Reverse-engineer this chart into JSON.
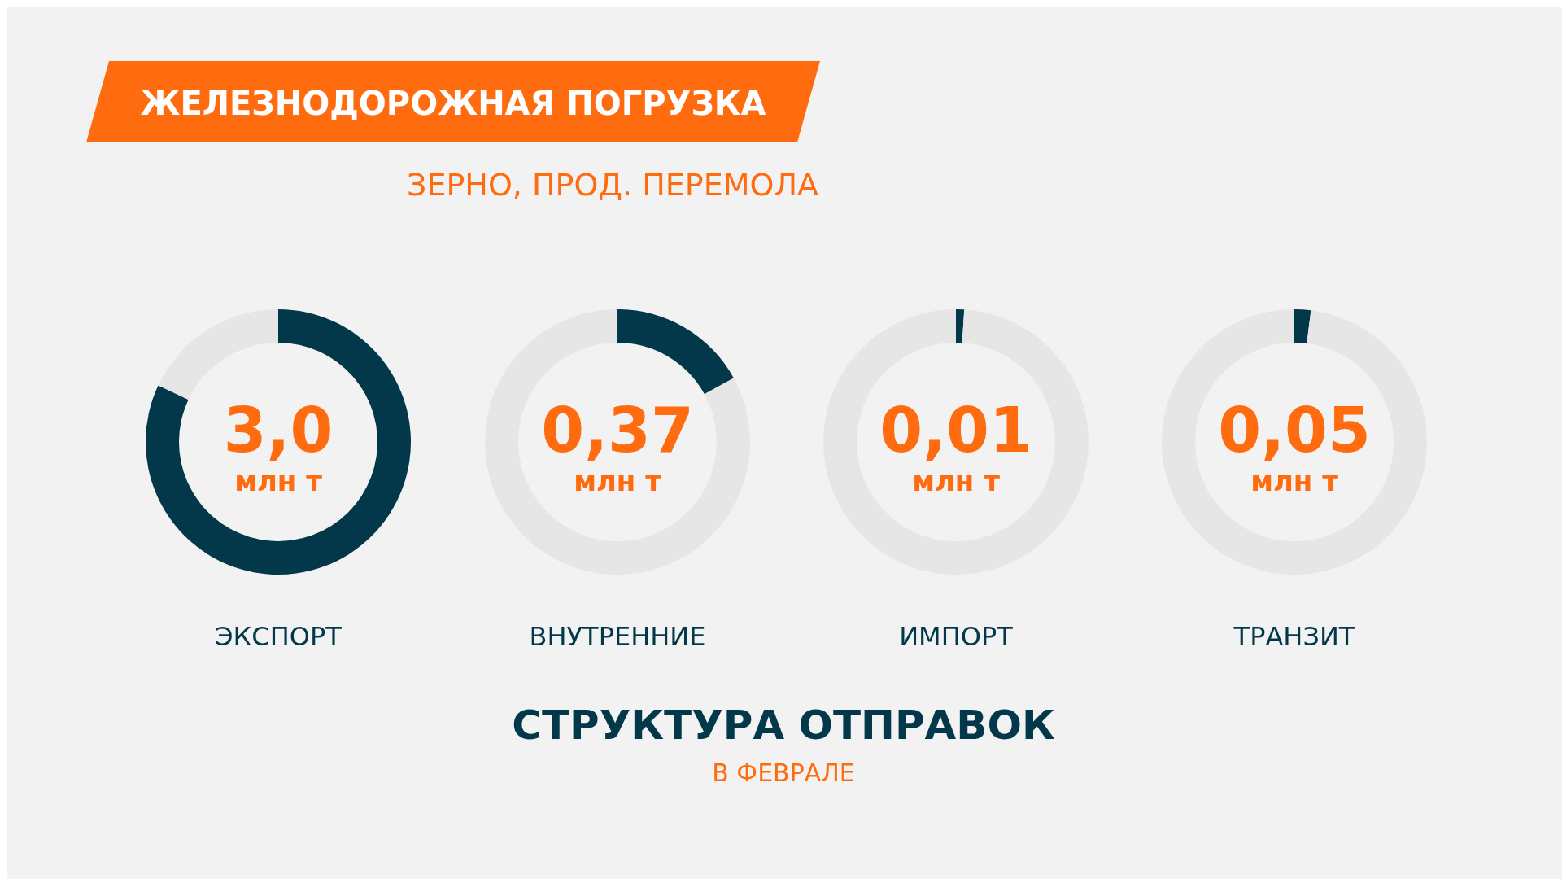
{
  "chart_data": [
    {
      "type": "other",
      "title": "ЖЕЛЕЗНОДОРОЖНАЯ ПОГРУЗКА",
      "subtitle": "ЗЕРНО, ПРОД. ПЕРЕМОЛА",
      "annotations": [
        "СТРУКТУРА ОТПРАВОК",
        "В ФЕВРАЛЕ"
      ]
    },
    {
      "type": "donut",
      "title": "ЭКСПОРТ",
      "categories": [
        null,
        null
      ],
      "values": [
        82,
        18
      ],
      "colors": [
        "#02384a",
        "#e6e6e6"
      ],
      "annotations": [
        "3,0",
        "млн т"
      ]
    },
    {
      "type": "donut",
      "title": "ВНУТРЕННИЕ",
      "categories": [
        null,
        null
      ],
      "values": [
        17,
        83
      ],
      "colors": [
        "#02384a",
        "#e6e6e6"
      ],
      "annotations": [
        "0,37",
        "млн т"
      ]
    },
    {
      "type": "donut",
      "title": "ИМПОРТ",
      "categories": [
        null,
        null
      ],
      "values": [
        1,
        99
      ],
      "colors": [
        "#02384a",
        "#e6e6e6"
      ],
      "annotations": [
        "0,01",
        "млн т"
      ]
    },
    {
      "type": "donut",
      "title": "ТРАНЗИТ",
      "categories": [
        null,
        null
      ],
      "values": [
        2,
        98
      ],
      "colors": [
        "#02384a",
        "#e6e6e6"
      ],
      "annotations": [
        "0,05",
        "млн т"
      ]
    }
  ]
}
